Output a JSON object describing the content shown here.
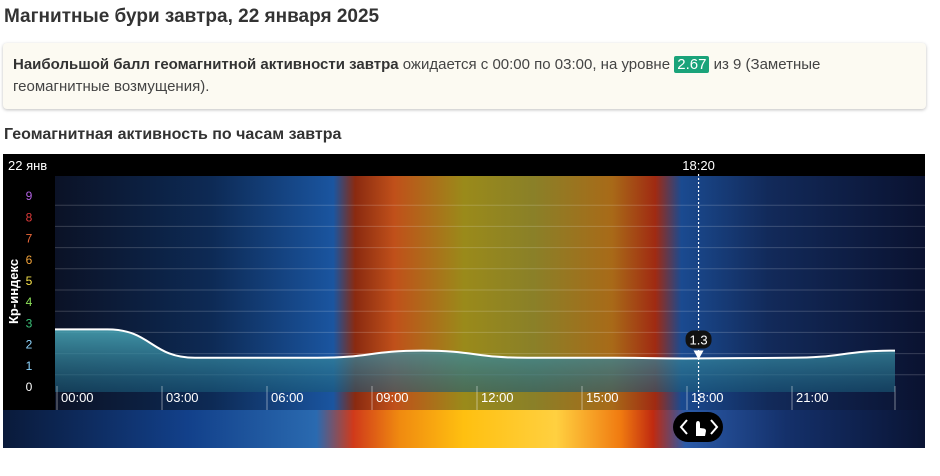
{
  "page": {
    "title": "Магнитные бури завтра, 22 января 2025",
    "summary": {
      "bold": "Наибольшой балл геомагнитной активности завтра",
      "text1": " ожидается с 00:00 по 03:00, на уровне ",
      "level": "2.67",
      "text2": " из 9 (Заметные геомагнитные возмущения)."
    },
    "subtitle": "Геомагнитная активность по часам завтра"
  },
  "chart_data": {
    "type": "area",
    "date_label": "22 янв",
    "ylabel": "Кр-индекс",
    "ylim": [
      0,
      9
    ],
    "y_ticks": [
      "0",
      "1",
      "2",
      "3",
      "4",
      "5",
      "6",
      "7",
      "8",
      "9"
    ],
    "y_tick_colors": [
      "#ffffff",
      "#8fd6ff",
      "#8fd6ff",
      "#3cc47a",
      "#8de05a",
      "#f5e04a",
      "#f2a33a",
      "#ee6a3a",
      "#e03a3a",
      "#b060e0"
    ],
    "x_tick_labels": [
      "00:00",
      "03:00",
      "06:00",
      "09:00",
      "12:00",
      "15:00",
      "18:00",
      "21:00"
    ],
    "x": [
      0,
      1.5,
      4,
      7.5,
      10.5,
      13.5,
      16,
      18,
      21,
      24
    ],
    "values": [
      2.67,
      2.67,
      1.33,
      1.33,
      1.67,
      1.33,
      1.33,
      1.3,
      1.33,
      1.67
    ],
    "cursor": {
      "time": "18:20",
      "value": "1.3",
      "x": 18.33
    },
    "colors": {
      "line": "#ffffff",
      "fill": "#2f8aa0",
      "accent": "#1aa37a"
    }
  }
}
